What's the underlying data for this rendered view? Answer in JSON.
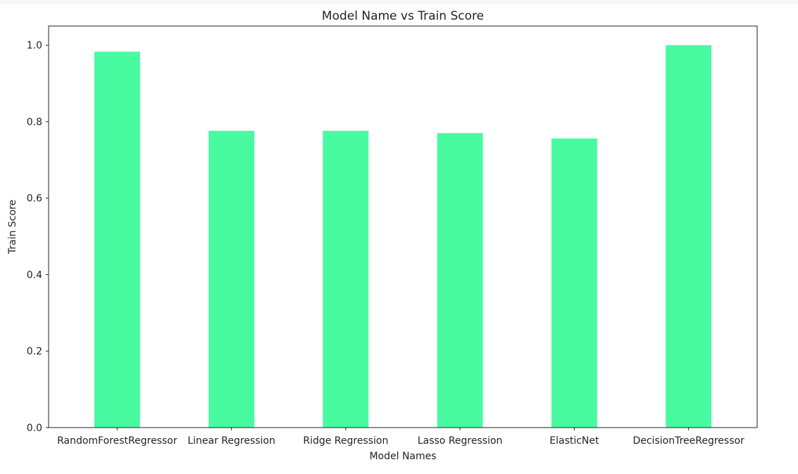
{
  "chart_data": {
    "type": "bar",
    "title": "Model Name vs Train Score",
    "xlabel": "Model Names",
    "ylabel": "Train Score",
    "categories": [
      "RandomForestRegressor",
      "Linear Regression",
      "Ridge Regression",
      "Lasso Regression",
      "ElasticNet",
      "DecisionTreeRegressor"
    ],
    "values": [
      0.983,
      0.776,
      0.776,
      0.77,
      0.756,
      1.0
    ],
    "ylim": [
      0,
      1.05
    ],
    "yticks": [
      0.0,
      0.2,
      0.4,
      0.6,
      0.8,
      1.0
    ],
    "ytick_labels": [
      "0.0",
      "0.2",
      "0.4",
      "0.6",
      "0.8",
      "1.0"
    ],
    "bar_color": "#48fba1",
    "grid": false,
    "legend": "none"
  }
}
